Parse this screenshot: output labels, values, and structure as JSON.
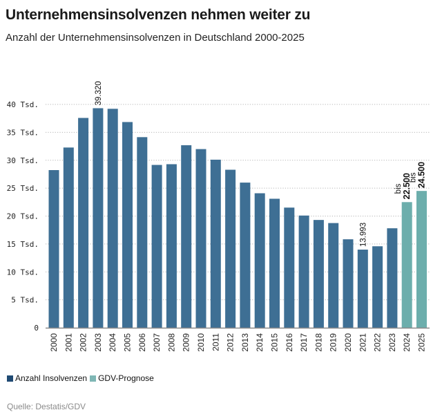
{
  "header": {
    "title": "Unternehmensinsolvenzen nehmen weiter zu",
    "subtitle": "Anzahl der Unternehmensinsolvenzen in Deutschland 2000-2025"
  },
  "legend": {
    "items": [
      {
        "label": "Anzahl Insolvenzen",
        "color": "#1f4a73"
      },
      {
        "label": "GDV-Prognose",
        "color": "#7fb7b5"
      }
    ]
  },
  "source": "Quelle: Destatis/GDV",
  "colors": {
    "actual": "#3e6f94",
    "forecast": "#6caeac",
    "grid": "#b5b5b5",
    "axis": "#8a8a8a"
  },
  "chart_data": {
    "type": "bar",
    "title": "Unternehmensinsolvenzen nehmen weiter zu",
    "subtitle": "Anzahl der Unternehmensinsolvenzen in Deutschland 2000-2025",
    "xlabel": "",
    "ylabel": "",
    "ylim": [
      0,
      40000
    ],
    "grid": true,
    "yticks": [
      {
        "value": 0,
        "label": "0"
      },
      {
        "value": 5000,
        "label": "5 Tsd."
      },
      {
        "value": 10000,
        "label": "10 Tsd."
      },
      {
        "value": 15000,
        "label": "15 Tsd."
      },
      {
        "value": 20000,
        "label": "20 Tsd."
      },
      {
        "value": 25000,
        "label": "25 Tsd."
      },
      {
        "value": 30000,
        "label": "30 Tsd."
      },
      {
        "value": 35000,
        "label": "35 Tsd."
      },
      {
        "value": 40000,
        "label": "40 Tsd."
      }
    ],
    "categories": [
      "2000",
      "2001",
      "2002",
      "2003",
      "2004",
      "2005",
      "2006",
      "2007",
      "2008",
      "2009",
      "2010",
      "2011",
      "2012",
      "2013",
      "2014",
      "2015",
      "2016",
      "2017",
      "2018",
      "2019",
      "2020",
      "2021",
      "2022",
      "2023",
      "2024",
      "2025"
    ],
    "values": [
      28235,
      32278,
      37579,
      39320,
      39213,
      36843,
      34137,
      29160,
      29291,
      32687,
      31998,
      30099,
      28297,
      25995,
      24085,
      23101,
      21518,
      20093,
      19302,
      18749,
      15841,
      13993,
      14590,
      17814,
      22500,
      24500
    ],
    "series_type": [
      "actual",
      "actual",
      "actual",
      "actual",
      "actual",
      "actual",
      "actual",
      "actual",
      "actual",
      "actual",
      "actual",
      "actual",
      "actual",
      "actual",
      "actual",
      "actual",
      "actual",
      "actual",
      "actual",
      "actual",
      "actual",
      "actual",
      "actual",
      "actual",
      "forecast",
      "forecast"
    ],
    "legend_position": "bottom-left",
    "annotations": [
      {
        "category": "2003",
        "text": "39.320",
        "prefix": ""
      },
      {
        "category": "2021",
        "text": "13.993",
        "prefix": ""
      },
      {
        "category": "2024",
        "text": "22.500",
        "prefix": "bis"
      },
      {
        "category": "2025",
        "text": "24.500",
        "prefix": "bis"
      }
    ]
  }
}
